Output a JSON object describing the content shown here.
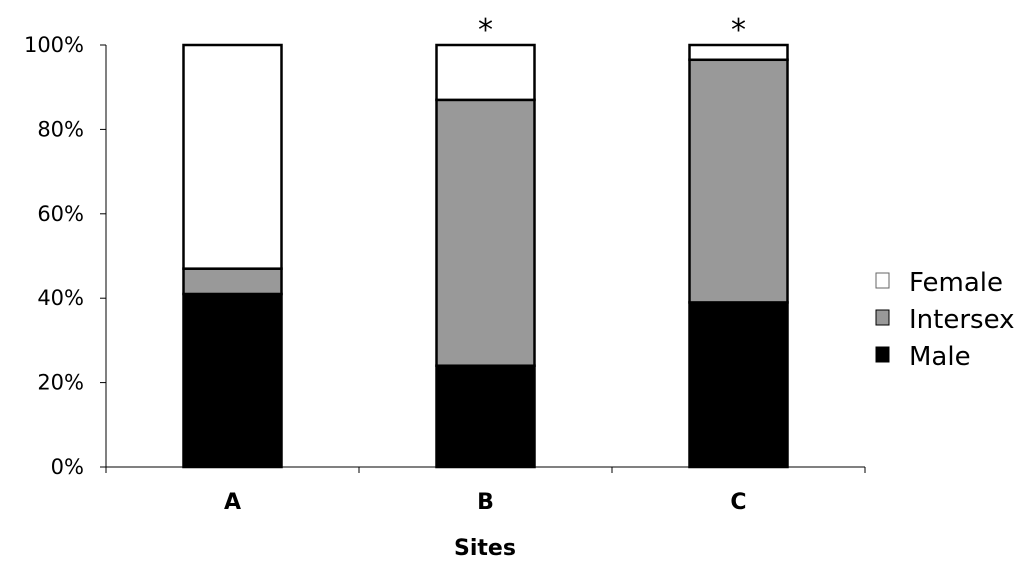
{
  "chart_data": {
    "type": "bar",
    "stacked": true,
    "title": "",
    "xlabel": "Sites",
    "ylabel": "",
    "ylim": [
      0,
      100
    ],
    "yticks": [
      "0%",
      "20%",
      "40%",
      "60%",
      "80%",
      "100%"
    ],
    "categories": [
      "A",
      "B",
      "C"
    ],
    "series": [
      {
        "name": "Male",
        "values": [
          41,
          24,
          39
        ],
        "color": "#000000"
      },
      {
        "name": "Intersex",
        "values": [
          6,
          63,
          57.5
        ],
        "color": "#999999"
      },
      {
        "name": "Female",
        "values": [
          53,
          13,
          3.5
        ],
        "color": "#ffffff"
      }
    ],
    "legend": {
      "position": "right",
      "entries": [
        "Female",
        "Intersex",
        "Male"
      ]
    },
    "annotations": [
      {
        "category": "B",
        "text": "*"
      },
      {
        "category": "C",
        "text": "*"
      }
    ],
    "grid": false
  }
}
